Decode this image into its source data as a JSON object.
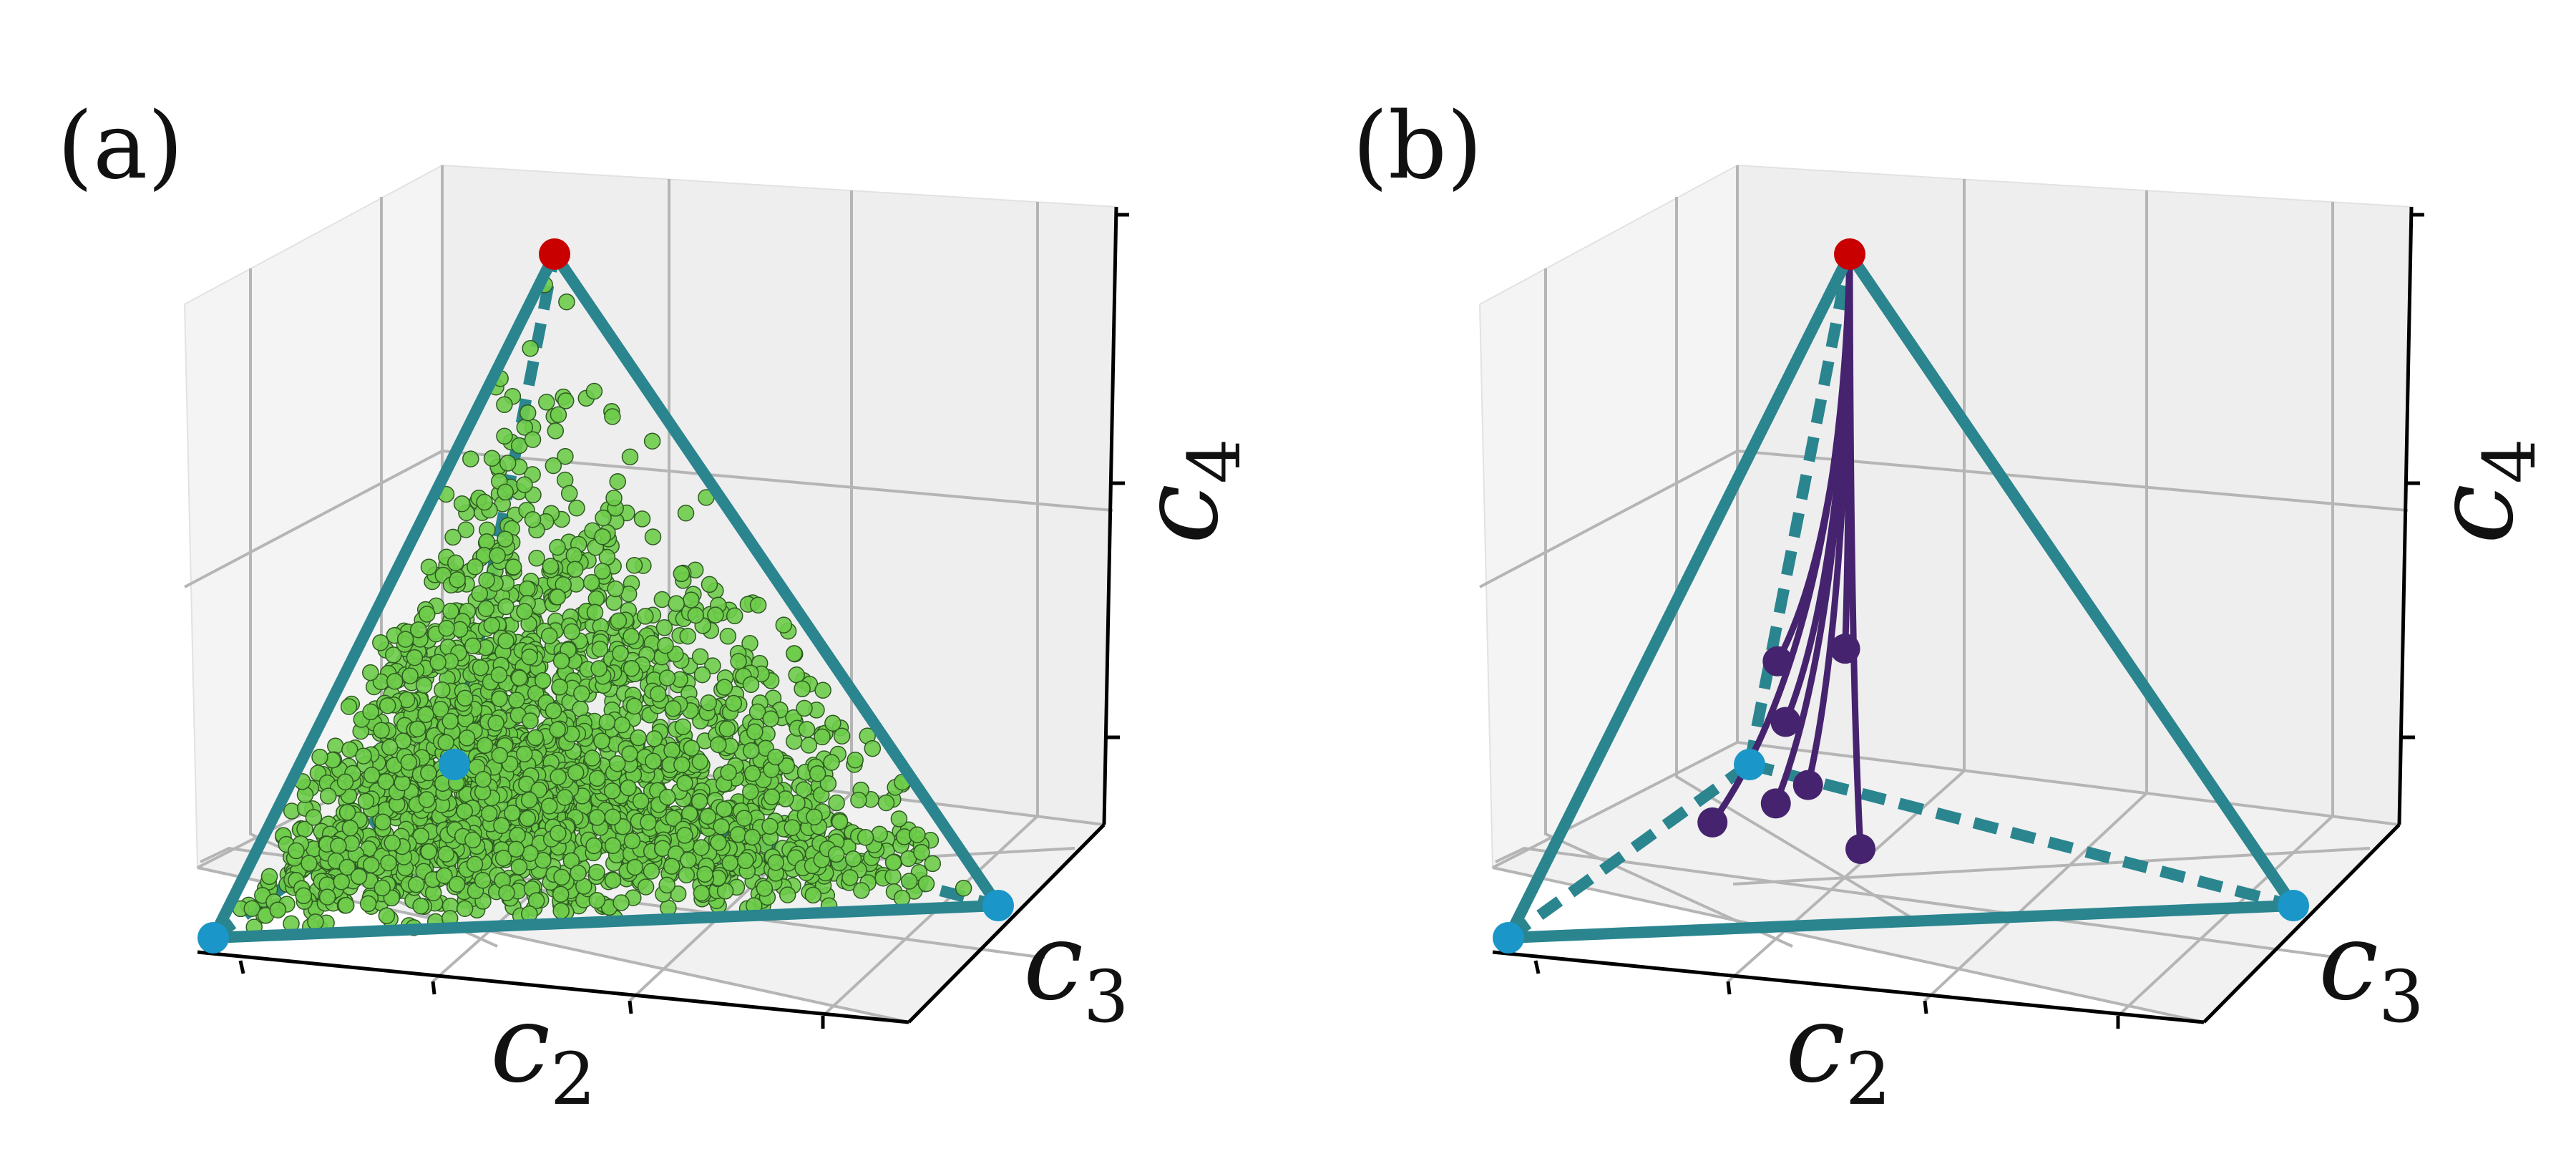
{
  "figure": {
    "panels": [
      {
        "label": "(a)",
        "xlabel": "c",
        "xlabel_sub": "2",
        "ylabel": "c",
        "ylabel_sub": "3",
        "zlabel": "c",
        "zlabel_sub": "4"
      },
      {
        "label": "(b)",
        "xlabel": "c",
        "xlabel_sub": "2",
        "ylabel": "c",
        "ylabel_sub": "3",
        "zlabel": "c",
        "zlabel_sub": "4"
      }
    ]
  },
  "chart_data": [
    {
      "type": "scatter",
      "title": "(a)",
      "xlabel": "c2",
      "ylabel": "c3",
      "zlabel": "c4",
      "xlim": [
        0,
        1
      ],
      "ylim": [
        0,
        1
      ],
      "zlim": [
        0,
        1
      ],
      "grid": true,
      "simplex_vertices": [
        {
          "c2": 0,
          "c3": 0,
          "c4": 0,
          "color": "#1a96c8"
        },
        {
          "c2": 1,
          "c3": 0,
          "c4": 0,
          "color": "#1a96c8"
        },
        {
          "c2": 0,
          "c3": 1,
          "c4": 0,
          "color": "#1a96c8"
        },
        {
          "c2": 0,
          "c3": 0,
          "c4": 1,
          "color": "#c80000"
        }
      ],
      "edge_color": "#2a858f",
      "series": [
        {
          "color": "#6ecc4a",
          "n_points": 2500,
          "distribution": "filled interior of the simplex, denser near the base"
        }
      ]
    },
    {
      "type": "line",
      "title": "(b)",
      "xlabel": "c2",
      "ylabel": "c3",
      "zlabel": "c4",
      "xlim": [
        0,
        1
      ],
      "ylim": [
        0,
        1
      ],
      "zlim": [
        0,
        1
      ],
      "grid": true,
      "simplex_vertices": [
        {
          "c2": 0,
          "c3": 0,
          "c4": 0,
          "color": "#1a96c8"
        },
        {
          "c2": 1,
          "c3": 0,
          "c4": 0,
          "color": "#1a96c8"
        },
        {
          "c2": 0,
          "c3": 1,
          "c4": 0,
          "color": "#1a96c8"
        },
        {
          "c2": 0,
          "c3": 0,
          "c4": 1,
          "color": "#c80000"
        }
      ],
      "edge_color": "#2a858f",
      "trajectory_color": "#46236e",
      "trajectories": [
        {
          "start": [
            0.15,
            0.55,
            0.05
          ]
        },
        {
          "start": [
            0.1,
            0.45,
            0.05
          ]
        },
        {
          "start": [
            0.35,
            0.25,
            0.05
          ]
        },
        {
          "start": [
            0.2,
            0.45,
            0.1
          ]
        },
        {
          "start": [
            0.15,
            0.35,
            0.22
          ]
        },
        {
          "start": [
            0.2,
            0.25,
            0.35
          ]
        },
        {
          "start": [
            0.05,
            0.6,
            0.25
          ]
        }
      ],
      "end": [
        0,
        0,
        1
      ]
    }
  ]
}
